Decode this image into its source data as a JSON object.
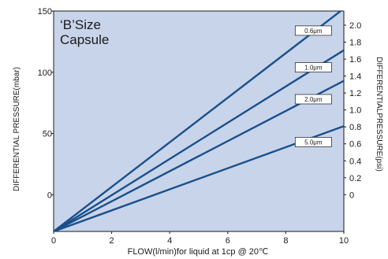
{
  "chart_data": {
    "type": "line",
    "title": "'B'Size Capsule",
    "title_lines": [
      "‘B’Size",
      "Capsule"
    ],
    "xlabel": "FLOW(l/min)for liquid at 1cp @ 20℃",
    "ylabel_left": "DIFFERENTIAL PRESSURE(mbar)",
    "ylabel_right": "DIFFERENTIALPRESSURE(psi)",
    "xlim": [
      0,
      10
    ],
    "ylim_left": [
      -30,
      150
    ],
    "ylim_right": [
      -0.4333,
      2.1667
    ],
    "x_ticks": [
      0,
      2,
      4,
      6,
      8,
      10
    ],
    "x_tick_labels": [
      "0",
      "2",
      "4",
      "6",
      "8",
      "10"
    ],
    "y_left_ticks": [
      0,
      50,
      100,
      150
    ],
    "y_left_tick_labels": [
      "0",
      "50",
      "100",
      "150"
    ],
    "y_right_ticks": [
      0,
      0.2,
      0.4,
      0.6,
      0.8,
      1.0,
      1.2,
      1.4,
      1.6,
      1.8,
      2.0
    ],
    "y_right_tick_labels": [
      "0",
      "0.2",
      "0.4",
      "0.6",
      "0.8",
      "1.0",
      "1.2",
      "1.4",
      "1.6",
      "1.8",
      "2.0"
    ],
    "grid": false,
    "series": [
      {
        "name": "0.6μm",
        "x": [
          0,
          10
        ],
        "y": [
          -30,
          152
        ]
      },
      {
        "name": "1.0μm",
        "x": [
          0,
          10
        ],
        "y": [
          -30,
          118
        ]
      },
      {
        "name": "2.0μm",
        "x": [
          0,
          10
        ],
        "y": [
          -30,
          93
        ]
      },
      {
        "name": "5.0μm",
        "x": [
          0,
          10
        ],
        "y": [
          -30,
          56
        ]
      }
    ],
    "series_label_positions": [
      {
        "x": 8.95,
        "y": 134
      },
      {
        "x": 8.95,
        "y": 104
      },
      {
        "x": 8.95,
        "y": 78
      },
      {
        "x": 8.95,
        "y": 43
      }
    ],
    "colors": {
      "plot_bg": "#c8d4ea",
      "line": "#1a4f8c",
      "axis": "#1a1a1a",
      "label_box": "#ffffff"
    }
  }
}
